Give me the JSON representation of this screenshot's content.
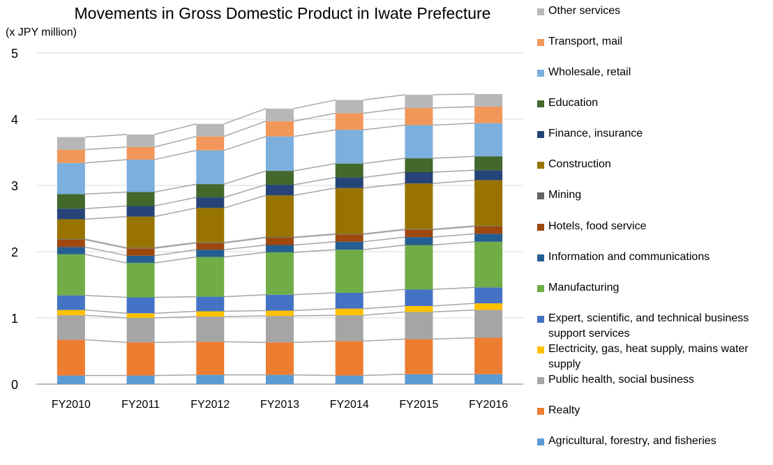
{
  "chart_data": {
    "type": "bar",
    "stacked": true,
    "title": "Movements in Gross Domestic Product in Iwate Prefecture",
    "ylabel": "(x JPY million)",
    "xlabel": "",
    "categories": [
      "FY2010",
      "FY2011",
      "FY2012",
      "FY2013",
      "FY2014",
      "FY2015",
      "FY2016"
    ],
    "ylim": [
      0,
      5
    ],
    "yticks": [
      "0",
      "1",
      "2",
      "3",
      "4",
      "5"
    ],
    "grid": true,
    "legend_position": "right",
    "series_connector_lines": true,
    "series": [
      {
        "name": "Agricultural, forestry, and fisheries",
        "color": "#5B9BD5",
        "values": [
          0.13,
          0.13,
          0.14,
          0.14,
          0.13,
          0.15,
          0.15
        ]
      },
      {
        "name": "Realty",
        "color": "#ED7D31",
        "values": [
          0.54,
          0.5,
          0.5,
          0.49,
          0.52,
          0.53,
          0.55
        ]
      },
      {
        "name": "Public health, social business",
        "color": "#A5A5A5",
        "values": [
          0.37,
          0.37,
          0.38,
          0.4,
          0.39,
          0.41,
          0.42
        ]
      },
      {
        "name": "Electricity, gas, heat supply, mains water supply",
        "color": "#FFC000",
        "values": [
          0.08,
          0.07,
          0.08,
          0.08,
          0.1,
          0.09,
          0.1
        ]
      },
      {
        "name": "Expert, scientific, and technical business support services",
        "color": "#4472C4",
        "values": [
          0.22,
          0.24,
          0.22,
          0.24,
          0.24,
          0.25,
          0.24
        ]
      },
      {
        "name": "Manufacturing",
        "color": "#70AD47",
        "values": [
          0.62,
          0.52,
          0.6,
          0.64,
          0.65,
          0.67,
          0.69
        ]
      },
      {
        "name": "Information and communications",
        "color": "#255E91",
        "values": [
          0.11,
          0.11,
          0.11,
          0.11,
          0.12,
          0.12,
          0.12
        ]
      },
      {
        "name": "Hotels, food service",
        "color": "#9E480E",
        "values": [
          0.11,
          0.11,
          0.1,
          0.11,
          0.11,
          0.11,
          0.11
        ]
      },
      {
        "name": "Mining",
        "color": "#636363",
        "values": [
          0.01,
          0.01,
          0.01,
          0.01,
          0.01,
          0.01,
          0.01
        ]
      },
      {
        "name": "Construction",
        "color": "#997300",
        "values": [
          0.3,
          0.47,
          0.52,
          0.63,
          0.69,
          0.69,
          0.69
        ]
      },
      {
        "name": "Finance, insurance",
        "color": "#264478",
        "values": [
          0.16,
          0.16,
          0.16,
          0.16,
          0.16,
          0.17,
          0.15
        ]
      },
      {
        "name": "Education",
        "color": "#43682B",
        "values": [
          0.22,
          0.21,
          0.2,
          0.21,
          0.21,
          0.21,
          0.21
        ]
      },
      {
        "name": "Wholesale, retail",
        "color": "#7CAFDD",
        "values": [
          0.47,
          0.49,
          0.51,
          0.52,
          0.51,
          0.5,
          0.5
        ]
      },
      {
        "name": "Transport, mail",
        "color": "#F1975A",
        "values": [
          0.2,
          0.19,
          0.21,
          0.23,
          0.25,
          0.26,
          0.25
        ]
      },
      {
        "name": "Other services",
        "color": "#B7B7B7",
        "values": [
          0.19,
          0.19,
          0.19,
          0.19,
          0.2,
          0.2,
          0.19
        ]
      }
    ]
  }
}
